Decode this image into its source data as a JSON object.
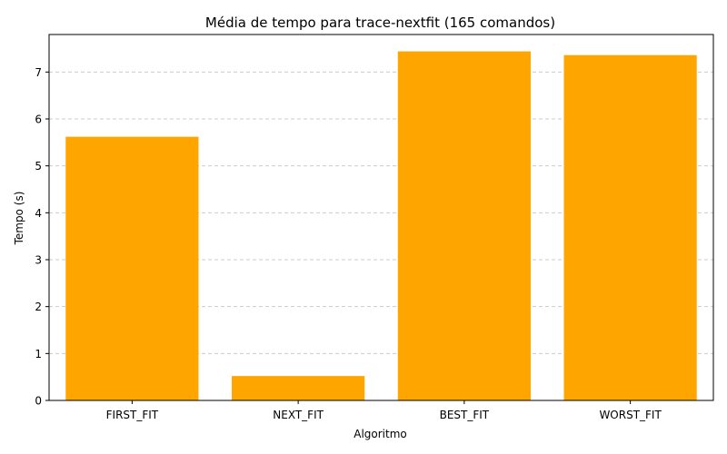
{
  "chart_data": {
    "type": "bar",
    "title": "Média de tempo para trace-nextfit (165 comandos)",
    "xlabel": "Algoritmo",
    "ylabel": "Tempo (s)",
    "categories": [
      "FIRST_FIT",
      "NEXT_FIT",
      "BEST_FIT",
      "WORST_FIT"
    ],
    "values": [
      5.62,
      0.52,
      7.44,
      7.36
    ],
    "ylim": [
      0,
      7.8
    ],
    "yticks": [
      0,
      1,
      2,
      3,
      4,
      5,
      6,
      7
    ],
    "grid": "y-dashed",
    "bar_color": "#ffa500",
    "grid_color": "#cccccc"
  }
}
